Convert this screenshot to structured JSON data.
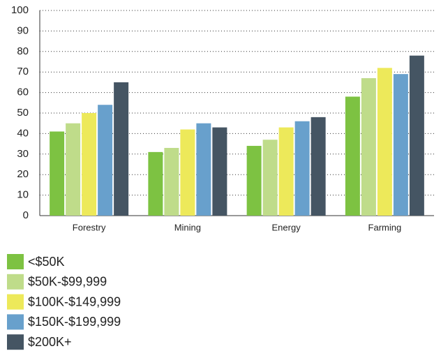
{
  "chart_data": {
    "type": "bar",
    "categories": [
      "Forestry",
      "Mining",
      "Energy",
      "Farming"
    ],
    "series": [
      {
        "name": "<$50K",
        "color": "#7dc242",
        "values": [
          41,
          31,
          34,
          58
        ]
      },
      {
        "name": "$50K-$99,999",
        "color": "#bfdc8a",
        "values": [
          45,
          33,
          37,
          67
        ]
      },
      {
        "name": "$100K-$149,999",
        "color": "#ede95a",
        "values": [
          50,
          42,
          43,
          72
        ]
      },
      {
        "name": "$150K-$199,999",
        "color": "#68a0cc",
        "values": [
          54,
          45,
          46,
          69
        ]
      },
      {
        "name": "$200K+",
        "color": "#455563",
        "values": [
          65,
          43,
          48,
          78
        ]
      }
    ],
    "ylim": [
      0,
      100
    ],
    "yticks": [
      0,
      10,
      20,
      30,
      40,
      50,
      60,
      70,
      80,
      90,
      100
    ],
    "grid": true
  }
}
